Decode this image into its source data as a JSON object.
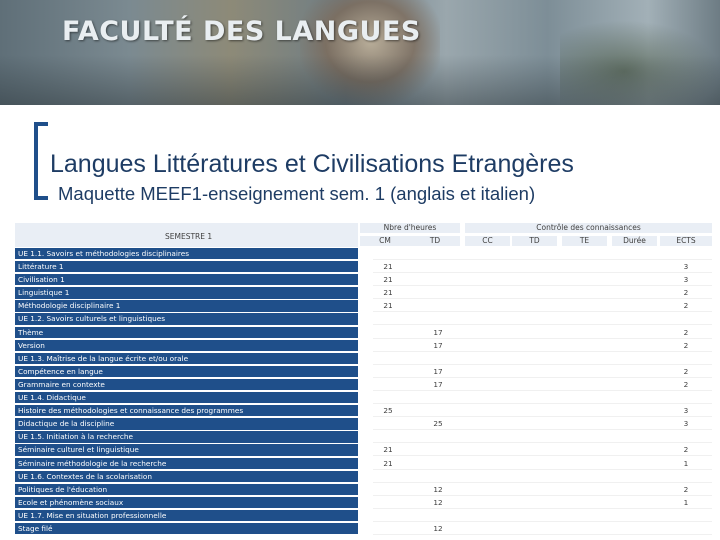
{
  "banner": {
    "title": "FACULTÉ DES LANGUES"
  },
  "title": "Langues Littératures et Civilisations Etrangères",
  "subtitle": "Maquette MEEF1-enseignement sem. 1 (anglais et italien)",
  "table": {
    "semester_label": "SEMESTRE 1",
    "group_hours": "Nbre d'heures",
    "group_control": "Contrôle des connaissances",
    "columns": [
      "CM",
      "TD",
      "CC",
      "TD",
      "TE",
      "Durée",
      "ECTS"
    ],
    "rows": [
      {
        "label": "UE 1.1. Savoirs et méthodologies disciplinaires",
        "cm": "",
        "td": "",
        "ects": ""
      },
      {
        "label": "Littérature 1",
        "cm": "21",
        "td": "",
        "ects": "3"
      },
      {
        "label": "Civilisation 1",
        "cm": "21",
        "td": "",
        "ects": "3"
      },
      {
        "label": "Linguistique 1",
        "cm": "21",
        "td": "",
        "ects": "2"
      },
      {
        "label": "Méthodologie disciplinaire 1",
        "cm": "21",
        "td": "",
        "ects": "2"
      },
      {
        "label": "UE 1.2. Savoirs culturels et linguistiques",
        "cm": "",
        "td": "",
        "ects": ""
      },
      {
        "label": "Thème",
        "cm": "",
        "td": "17",
        "ects": "2"
      },
      {
        "label": "Version",
        "cm": "",
        "td": "17",
        "ects": "2"
      },
      {
        "label": "UE 1.3. Maîtrise de la langue écrite et/ou orale",
        "cm": "",
        "td": "",
        "ects": ""
      },
      {
        "label": "Compétence en langue",
        "cm": "",
        "td": "17",
        "ects": "2"
      },
      {
        "label": "Grammaire en contexte",
        "cm": "",
        "td": "17",
        "ects": "2"
      },
      {
        "label": "UE 1.4. Didactique",
        "cm": "",
        "td": "",
        "ects": ""
      },
      {
        "label": "Histoire des méthodologies et connaissance des programmes",
        "cm": "25",
        "td": "",
        "ects": "3"
      },
      {
        "label": "Didactique de la discipline",
        "cm": "",
        "td": "25",
        "ects": "3"
      },
      {
        "label": "UE 1.5. Initiation à la recherche",
        "cm": "",
        "td": "",
        "ects": ""
      },
      {
        "label": "Séminaire culturel et linguistique",
        "cm": "21",
        "td": "",
        "ects": "2"
      },
      {
        "label": "Séminaire méthodologie de la recherche",
        "cm": "21",
        "td": "",
        "ects": "1"
      },
      {
        "label": "UE 1.6. Contextes de la scolarisation",
        "cm": "",
        "td": "",
        "ects": ""
      },
      {
        "label": "Politiques de l'éducation",
        "cm": "",
        "td": "12",
        "ects": "2"
      },
      {
        "label": "Ecole et phénomène sociaux",
        "cm": "",
        "td": "12",
        "ects": "1"
      },
      {
        "label": "UE 1.7. Mise en situation professionnelle",
        "cm": "",
        "td": "",
        "ects": ""
      },
      {
        "label": "Stage filé",
        "cm": "",
        "td": "12",
        "ects": ""
      }
    ]
  },
  "colors": {
    "label_bg": "#1f4f8a",
    "title": "#1e3c64",
    "header_bg": "#e9eef5"
  }
}
